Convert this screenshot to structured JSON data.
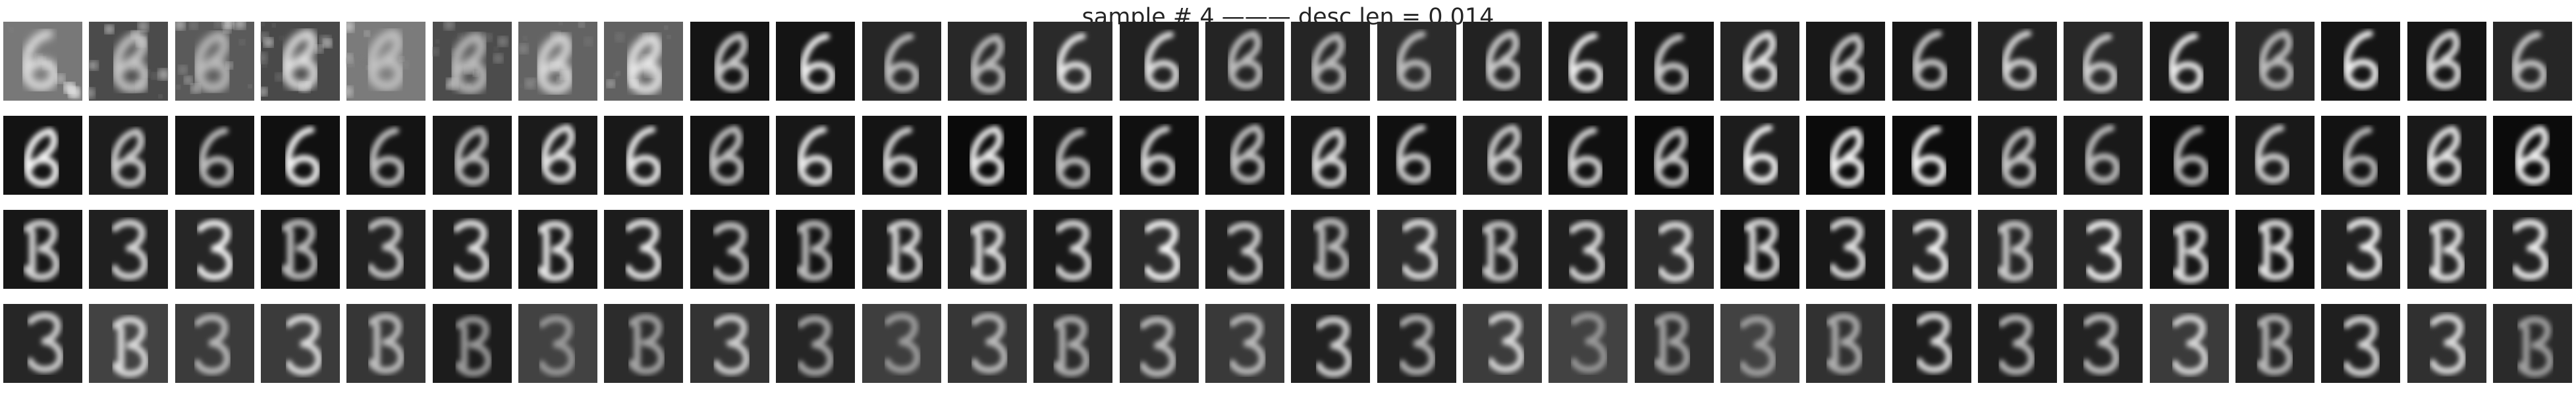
{
  "figure": {
    "title": "sample # 4 ——— desc len = 0.014"
  },
  "grid": {
    "rows": 4,
    "cols": 30,
    "row_themes": [
      "noisy-reconstructions-digit-6",
      "reconstructions-digit-6",
      "reconstructions-digit-3",
      "reconstructions-digit-3-dim"
    ],
    "background_color": "#ffffff",
    "tile_dark_color": "#0a0a0a",
    "stroke_color": "#e6e6e6"
  }
}
